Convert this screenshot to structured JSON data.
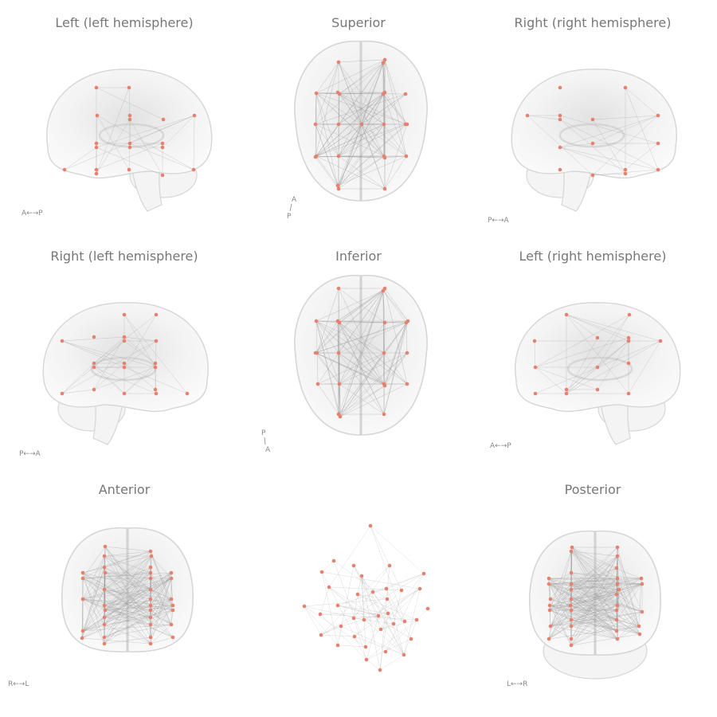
{
  "panels": [
    {
      "id": "left-lh",
      "title": "Left (left hemisphere)",
      "view": "sagittal",
      "orientation": "A←→P"
    },
    {
      "id": "superior",
      "title": "Superior",
      "view": "axial",
      "orientation_top": "A",
      "orientation_bottom": "P"
    },
    {
      "id": "right-rh",
      "title": "Right (right hemisphere)",
      "view": "sagittal",
      "orientation": "P←→A"
    },
    {
      "id": "right-lh",
      "title": "Right (left hemisphere)",
      "view": "sagittal",
      "orientation": "P←→A"
    },
    {
      "id": "inferior",
      "title": "Inferior",
      "view": "axial",
      "orientation_top": "P",
      "orientation_bottom": "A"
    },
    {
      "id": "left-rh",
      "title": "Left (right hemisphere)",
      "view": "sagittal",
      "orientation": "A←→P"
    },
    {
      "id": "anterior",
      "title": "Anterior",
      "view": "coronal",
      "orientation": "R←→L"
    },
    {
      "id": "network",
      "title": "",
      "view": "graph",
      "orientation": ""
    },
    {
      "id": "posterior",
      "title": "Posterior",
      "view": "coronal",
      "orientation": "L←→R"
    }
  ],
  "colors": {
    "node": "#e8806e",
    "edge": "#999999",
    "brain_outline": "#d6d6d6",
    "brain_fill": "#f4f4f4",
    "title": "#777777"
  }
}
